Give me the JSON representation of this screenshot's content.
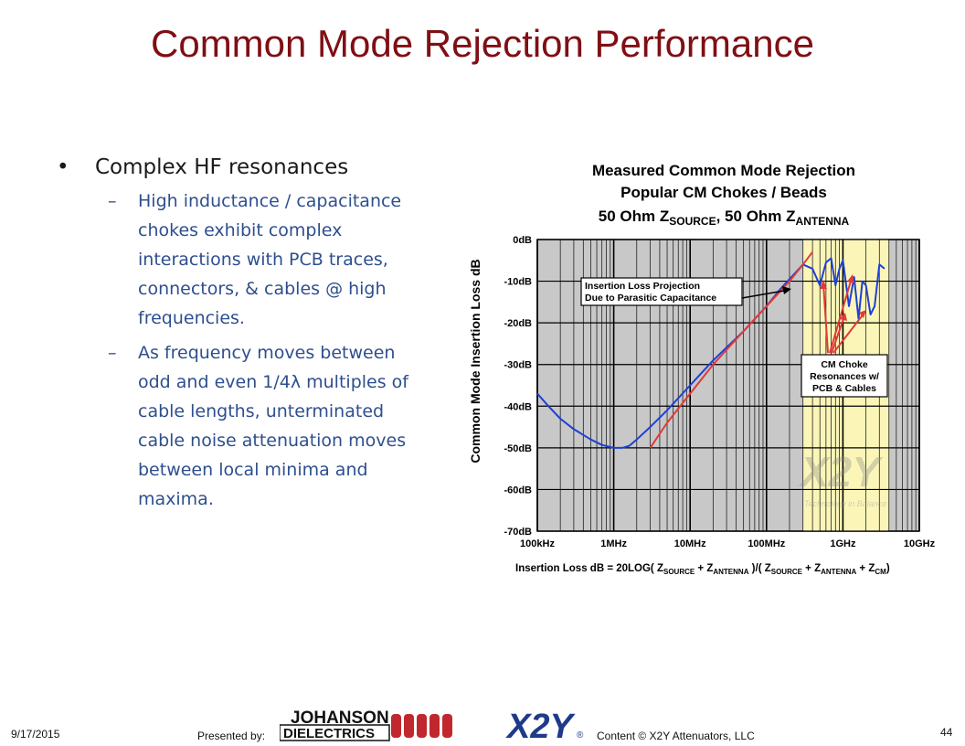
{
  "slide": {
    "title": "Common Mode Rejection Performance",
    "bullet": "Complex HF resonances",
    "subbullets": [
      "High inductance / capacitance chokes exhibit complex interactions with PCB traces, connectors, & cables @ high frequencies.",
      "As frequency moves between odd and even 1/4λ multiples of cable lengths, unterminated cable noise attenuation moves between local minima and maxima."
    ]
  },
  "footer": {
    "date": "9/17/2015",
    "presented_by": "Presented by:",
    "copyright": "Content © X2Y Attenuators, LLC",
    "page": "44",
    "logo_johanson_top": "JOHANSON",
    "logo_johanson_bottom": "DIELECTRICS",
    "logo_x2y": "X2Y",
    "logo_x2y_mark": "®"
  },
  "chart_data": {
    "type": "line",
    "title": [
      "Measured Common Mode Rejection",
      "Popular CM Chokes / Beads",
      "50 Ohm Z",
      "SOURCE",
      ", 50 Ohm Z",
      "ANTENNA"
    ],
    "ylabel": "Common Mode Insertion Loss dB",
    "xlabel_parts": [
      "Insertion Loss dB = 20LOG( Z",
      "SOURCE",
      " + Z",
      "ANTENNA",
      " )/( Z",
      "SOURCE",
      " + Z",
      "ANTENNA",
      " + Z",
      "CM",
      ")"
    ],
    "xscale": "log",
    "xlim_hz": [
      100000,
      10000000000
    ],
    "ylim": [
      -70,
      0
    ],
    "xticks": [
      "100kHz",
      "1MHz",
      "10MHz",
      "100MHz",
      "1GHz",
      "10GHz"
    ],
    "yticks": [
      "0dB",
      "-10dB",
      "-20dB",
      "-30dB",
      "-40dB",
      "-50dB",
      "-60dB",
      "-70dB"
    ],
    "grid": true,
    "highlight_band_hz": [
      300000000,
      4000000000
    ],
    "annotations": [
      "Insertion Loss Projection Due to Parasitic Capacitance",
      "CM Choke Resonances w/ PCB & Cables"
    ],
    "watermark": "X2Y",
    "watermark_tagline": "Technology in Balance",
    "colors": {
      "measured": "#1f3fd6",
      "projection": "#e03a3a",
      "band": "#fbf6b8"
    },
    "series": [
      {
        "style": "measured",
        "x": [
          100000,
          140000,
          200000,
          300000,
          500000,
          700000,
          1000000,
          1300000,
          1600000,
          2000000,
          3000000,
          5000000,
          10000000,
          20000000,
          50000000,
          100000000,
          150000000,
          200000000,
          300000000,
          400000000,
          500000000,
          600000000,
          700000000,
          800000000,
          900000000,
          1000000000,
          1200000000,
          1400000000,
          1600000000,
          1800000000,
          2000000000,
          2300000000,
          2600000000,
          3000000000,
          3500000000
        ],
        "y": [
          -37,
          -40,
          -43,
          -45.5,
          -48,
          -49.3,
          -50,
          -50,
          -49.5,
          -48,
          -45,
          -41,
          -35,
          -29,
          -22,
          -16,
          -12,
          -9.5,
          -6,
          -7,
          -11,
          -5.5,
          -4.5,
          -11,
          -7,
          -5,
          -16,
          -9,
          -19,
          -10,
          -11,
          -18,
          -16,
          -6,
          -7
        ]
      },
      {
        "style": "projection",
        "x": [
          3000000,
          5000000,
          10000000,
          20000000,
          50000000,
          100000000,
          200000000,
          300000000,
          400000000
        ],
        "y": [
          -50,
          -44,
          -37,
          -30,
          -22,
          -16,
          -10,
          -6,
          -3
        ]
      }
    ]
  }
}
